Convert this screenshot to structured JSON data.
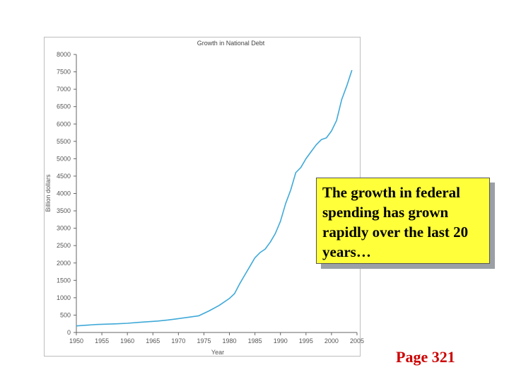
{
  "chart_data": {
    "type": "line",
    "title": "Growth in National Debt",
    "xlabel": "Year",
    "ylabel": "Billion dollars",
    "xlim": [
      1950,
      2005
    ],
    "ylim": [
      0,
      8000
    ],
    "x_ticks": [
      "1950",
      "1955",
      "1960",
      "1965",
      "1970",
      "1975",
      "1980",
      "1985",
      "1990",
      "1995",
      "2000",
      "2005"
    ],
    "y_ticks": [
      "0",
      "500",
      "1000",
      "1500",
      "2000",
      "2500",
      "3000",
      "3500",
      "4000",
      "4500",
      "5000",
      "5500",
      "6000",
      "6500",
      "7000",
      "7500",
      "8000"
    ],
    "grid": false,
    "line_color": "#3fa9d8",
    "series": [
      {
        "x": [
          1950,
          1952,
          1954,
          1956,
          1958,
          1960,
          1962,
          1964,
          1966,
          1968,
          1970,
          1972,
          1974,
          1976,
          1978,
          1980,
          1981,
          1982,
          1983,
          1984,
          1985,
          1986,
          1987,
          1988,
          1989,
          1990,
          1991,
          1992,
          1993,
          1994,
          1995,
          1996,
          1997,
          1998,
          1999,
          2000,
          2001,
          2002,
          2003,
          2004
        ],
        "y": [
          190,
          210,
          230,
          240,
          250,
          265,
          290,
          310,
          330,
          360,
          400,
          440,
          480,
          620,
          780,
          980,
          1120,
          1400,
          1650,
          1900,
          2150,
          2300,
          2400,
          2600,
          2850,
          3200,
          3700,
          4100,
          4600,
          4750,
          5000,
          5200,
          5400,
          5550,
          5600,
          5800,
          6100,
          6700,
          7100,
          7550
        ]
      }
    ]
  },
  "callout": {
    "text": "The growth in federal spending has grown rapidly over the last 20 years…"
  },
  "page_ref": "Page 321"
}
